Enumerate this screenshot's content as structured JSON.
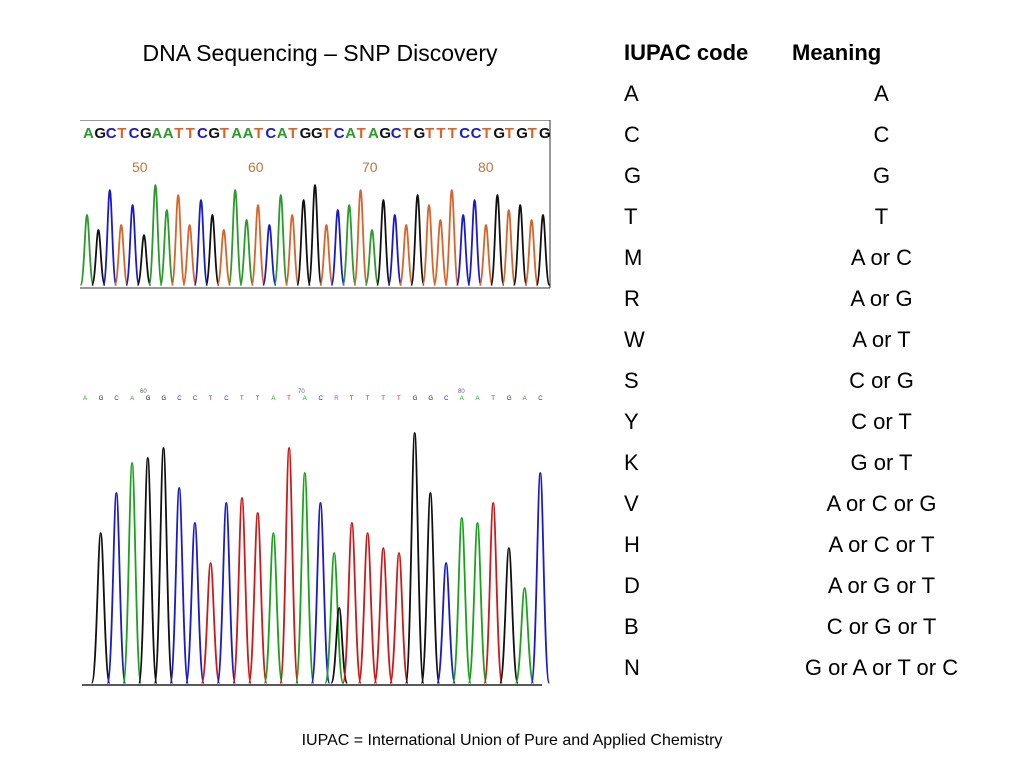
{
  "title": "DNA Sequencing – SNP Discovery",
  "table": {
    "header_code": "IUPAC code",
    "header_meaning": "Meaning",
    "rows": [
      {
        "code": "A",
        "meaning": "A"
      },
      {
        "code": "C",
        "meaning": "C"
      },
      {
        "code": "G",
        "meaning": "G"
      },
      {
        "code": "T",
        "meaning": "T"
      },
      {
        "code": "M",
        "meaning": "A or C"
      },
      {
        "code": "R",
        "meaning": "A or G"
      },
      {
        "code": "W",
        "meaning": "A or T"
      },
      {
        "code": "S",
        "meaning": "C or G"
      },
      {
        "code": "Y",
        "meaning": "C or T"
      },
      {
        "code": "K",
        "meaning": "G or T"
      },
      {
        "code": "V",
        "meaning": "A or C or G"
      },
      {
        "code": "H",
        "meaning": "A or C or T"
      },
      {
        "code": "D",
        "meaning": "A or G or T"
      },
      {
        "code": "B",
        "meaning": "C or G or T"
      },
      {
        "code": "N",
        "meaning": "G or A or T or C"
      }
    ]
  },
  "footnote": "IUPAC = International Union of Pure and Applied Chemistry",
  "trace_top": {
    "sequence": "AGCTCGAATTCGTAATCATGGTCATAGCTGTTTCCTGTGTG",
    "positions": [
      "50",
      "60",
      "70",
      "80"
    ]
  },
  "trace_bottom": {
    "sequence": "AGCAGGCCTCTTATACRTTTTGGCAATGAC",
    "positions": [
      "60",
      "70",
      "80"
    ]
  },
  "colors": {
    "A": "#1aa31a",
    "C": "#1a1acc",
    "G": "#111111",
    "T": "#cc1a1a",
    "G_top": "#111111",
    "T_top": "#d9642a",
    "C_top": "#1a1acc",
    "A_top": "#2a9a2a",
    "R": "#c040c0"
  }
}
